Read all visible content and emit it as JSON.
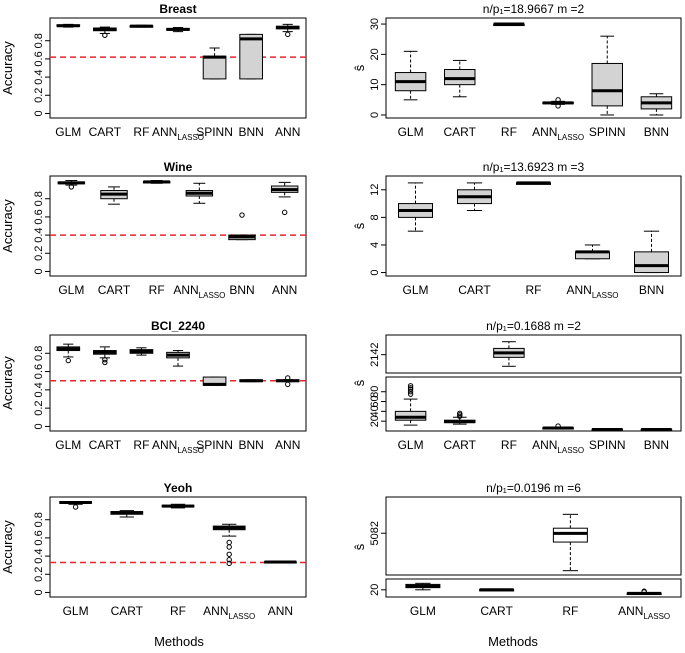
{
  "figure": {
    "xlabel_left": "Methods",
    "xlabel_right": "Methods"
  },
  "chart_data": [
    {
      "id": "breast-accuracy",
      "type": "box",
      "title": "Breast",
      "ylabel": "Accuracy",
      "ylim": [
        -0.05,
        1.05
      ],
      "yticks": [
        0.0,
        0.2,
        0.4,
        0.6,
        0.8
      ],
      "reference_line": 0.62,
      "categories": [
        {
          "label": "GLM",
          "sub": "",
          "min": 0.95,
          "q1": 0.96,
          "median": 0.965,
          "q3": 0.975,
          "max": 0.98,
          "outliers": [],
          "filled": true
        },
        {
          "label": "CART",
          "sub": "",
          "min": 0.88,
          "q1": 0.91,
          "median": 0.925,
          "q3": 0.94,
          "max": 0.95,
          "outliers": [
            0.86
          ],
          "filled": true
        },
        {
          "label": "RF",
          "sub": "",
          "min": 0.95,
          "q1": 0.955,
          "median": 0.96,
          "q3": 0.965,
          "max": 0.97,
          "outliers": [],
          "filled": true
        },
        {
          "label": "ANN",
          "sub": "LASSO",
          "min": 0.9,
          "q1": 0.915,
          "median": 0.925,
          "q3": 0.935,
          "max": 0.945,
          "outliers": [],
          "filled": true
        },
        {
          "label": "SPINN",
          "sub": "",
          "min": 0.38,
          "q1": 0.38,
          "median": 0.62,
          "q3": 0.63,
          "max": 0.72,
          "outliers": [],
          "filled": true
        },
        {
          "label": "BNN",
          "sub": "",
          "min": 0.38,
          "q1": 0.38,
          "median": 0.82,
          "q3": 0.87,
          "max": 0.87,
          "outliers": [],
          "filled": true
        },
        {
          "label": "ANN",
          "sub": "",
          "min": 0.9,
          "q1": 0.93,
          "median": 0.945,
          "q3": 0.96,
          "max": 0.98,
          "outliers": [
            0.87
          ],
          "filled": true
        }
      ]
    },
    {
      "id": "breast-shat",
      "type": "box",
      "title": "n/p₁=18.9667   m =2",
      "ylabel": "ŝ",
      "ylim": [
        -1,
        32
      ],
      "yticks": [
        0,
        10,
        20,
        30
      ],
      "categories": [
        {
          "label": "GLM",
          "sub": "",
          "min": 5,
          "q1": 8,
          "median": 11,
          "q3": 14,
          "max": 21,
          "outliers": [],
          "filled": true
        },
        {
          "label": "CART",
          "sub": "",
          "min": 6,
          "q1": 10,
          "median": 12,
          "q3": 15,
          "max": 18,
          "outliers": [],
          "filled": true
        },
        {
          "label": "RF",
          "sub": "",
          "min": 30,
          "q1": 30,
          "median": 30,
          "q3": 30,
          "max": 30,
          "outliers": [],
          "filled": true
        },
        {
          "label": "ANN",
          "sub": "LASSO",
          "min": 3.5,
          "q1": 3.8,
          "median": 4,
          "q3": 4.2,
          "max": 4.5,
          "outliers": [
            3,
            5
          ],
          "filled": true
        },
        {
          "label": "SPINN",
          "sub": "",
          "min": 0,
          "q1": 3,
          "median": 8,
          "q3": 17,
          "max": 26,
          "outliers": [],
          "filled": true
        },
        {
          "label": "BNN",
          "sub": "",
          "min": 0,
          "q1": 2,
          "median": 4,
          "q3": 6,
          "max": 7,
          "outliers": [],
          "filled": true
        }
      ]
    },
    {
      "id": "wine-accuracy",
      "type": "box",
      "title": "Wine",
      "ylabel": "Accuracy",
      "ylim": [
        -0.05,
        1.05
      ],
      "yticks": [
        0.0,
        0.2,
        0.4,
        0.6,
        0.8
      ],
      "reference_line": 0.4,
      "categories": [
        {
          "label": "GLM",
          "sub": "",
          "min": 0.95,
          "q1": 0.965,
          "median": 0.975,
          "q3": 0.985,
          "max": 1.0,
          "outliers": [
            0.93
          ],
          "filled": true
        },
        {
          "label": "CART",
          "sub": "",
          "min": 0.74,
          "q1": 0.8,
          "median": 0.85,
          "q3": 0.89,
          "max": 0.93,
          "outliers": [],
          "filled": true
        },
        {
          "label": "RF",
          "sub": "",
          "min": 0.97,
          "q1": 0.98,
          "median": 0.985,
          "q3": 0.99,
          "max": 1.0,
          "outliers": [],
          "filled": true
        },
        {
          "label": "ANN",
          "sub": "LASSO",
          "min": 0.75,
          "q1": 0.83,
          "median": 0.86,
          "q3": 0.89,
          "max": 0.97,
          "outliers": [],
          "filled": true
        },
        {
          "label": "BNN",
          "sub": "",
          "min": 0.35,
          "q1": 0.35,
          "median": 0.38,
          "q3": 0.4,
          "max": 0.4,
          "outliers": [
            0.62
          ],
          "filled": true
        },
        {
          "label": "ANN",
          "sub": "",
          "min": 0.82,
          "q1": 0.87,
          "median": 0.9,
          "q3": 0.94,
          "max": 0.98,
          "outliers": [
            0.65
          ],
          "filled": true
        }
      ]
    },
    {
      "id": "wine-shat",
      "type": "box",
      "title": "n/p₁=13.6923   m =3",
      "ylabel": "ŝ",
      "ylim": [
        -0.5,
        14
      ],
      "yticks": [
        0,
        4,
        8,
        12
      ],
      "categories": [
        {
          "label": "GLM",
          "sub": "",
          "min": 6,
          "q1": 8,
          "median": 9,
          "q3": 10,
          "max": 13,
          "outliers": [],
          "filled": true
        },
        {
          "label": "CART",
          "sub": "",
          "min": 9,
          "q1": 10,
          "median": 11,
          "q3": 12,
          "max": 13,
          "outliers": [],
          "filled": true
        },
        {
          "label": "RF",
          "sub": "",
          "min": 13,
          "q1": 13,
          "median": 13,
          "q3": 13,
          "max": 13,
          "outliers": [],
          "filled": true
        },
        {
          "label": "ANN",
          "sub": "LASSO",
          "min": 2,
          "q1": 2,
          "median": 3,
          "q3": 3,
          "max": 4,
          "outliers": [],
          "filled": true
        },
        {
          "label": "BNN",
          "sub": "",
          "min": 0,
          "q1": 0,
          "median": 1,
          "q3": 3,
          "max": 6,
          "outliers": [],
          "filled": true
        }
      ]
    },
    {
      "id": "bci-accuracy",
      "type": "box",
      "title": "BCI_2240",
      "ylabel": "Accuracy",
      "ylim": [
        -0.05,
        1.0
      ],
      "yticks": [
        0.0,
        0.2,
        0.4,
        0.6,
        0.8
      ],
      "reference_line": 0.5,
      "categories": [
        {
          "label": "GLM",
          "sub": "",
          "min": 0.76,
          "q1": 0.83,
          "median": 0.85,
          "q3": 0.87,
          "max": 0.9,
          "outliers": [
            0.72
          ],
          "filled": true
        },
        {
          "label": "CART",
          "sub": "",
          "min": 0.75,
          "q1": 0.79,
          "median": 0.81,
          "q3": 0.83,
          "max": 0.87,
          "outliers": [
            0.7,
            0.73
          ],
          "filled": true
        },
        {
          "label": "RF",
          "sub": "",
          "min": 0.78,
          "q1": 0.8,
          "median": 0.82,
          "q3": 0.84,
          "max": 0.86,
          "outliers": [],
          "filled": true
        },
        {
          "label": "ANN",
          "sub": "LASSO",
          "min": 0.66,
          "q1": 0.75,
          "median": 0.78,
          "q3": 0.81,
          "max": 0.83,
          "outliers": [],
          "filled": true
        },
        {
          "label": "SPINN",
          "sub": "",
          "min": 0.45,
          "q1": 0.45,
          "median": 0.46,
          "q3": 0.54,
          "max": 0.54,
          "outliers": [],
          "filled": true
        },
        {
          "label": "BNN",
          "sub": "",
          "min": 0.49,
          "q1": 0.49,
          "median": 0.5,
          "q3": 0.51,
          "max": 0.51,
          "outliers": [],
          "filled": true
        },
        {
          "label": "ANN",
          "sub": "",
          "min": 0.49,
          "q1": 0.49,
          "median": 0.5,
          "q3": 0.51,
          "max": 0.51,
          "outliers": [
            0.46,
            0.53
          ],
          "filled": true
        }
      ]
    },
    {
      "id": "bci-shat",
      "type": "box",
      "title": "n/p₁=0.1688   m =2",
      "ylabel": "ŝ",
      "broken_axis": true,
      "upper": {
        "ylim": [
          2060,
          2230
        ],
        "yticks": [
          2142
        ]
      },
      "lower": {
        "ylim": [
          0,
          110
        ],
        "yticks": [
          20,
          40,
          60,
          80
        ]
      },
      "categories": [
        {
          "label": "GLM",
          "sub": "",
          "min": 12,
          "q1": 22,
          "median": 28,
          "q3": 40,
          "max": 65,
          "outliers": [
            75,
            80,
            85,
            88,
            92
          ],
          "filled": true,
          "segment": "lower"
        },
        {
          "label": "CART",
          "sub": "",
          "min": 14,
          "q1": 17,
          "median": 19,
          "q3": 22,
          "max": 28,
          "outliers": [
            30,
            33,
            36
          ],
          "filled": true,
          "segment": "lower"
        },
        {
          "label": "RF",
          "sub": "",
          "min": 2090,
          "q1": 2130,
          "median": 2150,
          "q3": 2170,
          "max": 2200,
          "outliers": [],
          "filled": true,
          "segment": "upper"
        },
        {
          "label": "ANN",
          "sub": "LASSO",
          "min": 4,
          "q1": 5,
          "median": 6,
          "q3": 7,
          "max": 8,
          "outliers": [
            10
          ],
          "filled": true,
          "segment": "lower"
        },
        {
          "label": "SPINN",
          "sub": "",
          "min": 2,
          "q1": 2.5,
          "median": 3,
          "q3": 3.5,
          "max": 4,
          "outliers": [],
          "filled": true,
          "segment": "lower"
        },
        {
          "label": "BNN",
          "sub": "",
          "min": 2,
          "q1": 2.5,
          "median": 3,
          "q3": 3.5,
          "max": 4,
          "outliers": [],
          "filled": true,
          "segment": "lower"
        }
      ]
    },
    {
      "id": "yeoh-accuracy",
      "type": "box",
      "title": "Yeoh",
      "ylabel": "Accuracy",
      "ylim": [
        -0.05,
        1.05
      ],
      "yticks": [
        0.0,
        0.2,
        0.4,
        0.6,
        0.8
      ],
      "reference_line": 0.33,
      "categories": [
        {
          "label": "GLM",
          "sub": "",
          "min": 0.97,
          "q1": 0.98,
          "median": 0.99,
          "q3": 1.0,
          "max": 1.0,
          "outliers": [
            0.94
          ],
          "filled": true
        },
        {
          "label": "CART",
          "sub": "",
          "min": 0.83,
          "q1": 0.86,
          "median": 0.875,
          "q3": 0.89,
          "max": 0.9,
          "outliers": [],
          "filled": true
        },
        {
          "label": "RF",
          "sub": "",
          "min": 0.93,
          "q1": 0.94,
          "median": 0.95,
          "q3": 0.96,
          "max": 0.97,
          "outliers": [],
          "filled": true
        },
        {
          "label": "ANN",
          "sub": "LASSO",
          "min": 0.62,
          "q1": 0.69,
          "median": 0.71,
          "q3": 0.73,
          "max": 0.75,
          "outliers": [
            0.55,
            0.5,
            0.42,
            0.36,
            0.32
          ],
          "filled": true
        },
        {
          "label": "ANN",
          "sub": "",
          "min": 0.33,
          "q1": 0.33,
          "median": 0.335,
          "q3": 0.34,
          "max": 0.34,
          "outliers": [],
          "filled": true
        }
      ]
    },
    {
      "id": "yeoh-shat",
      "type": "box",
      "title": "n/p₁=0.0196   m =6",
      "ylabel": "ŝ",
      "broken_axis": true,
      "upper": {
        "ylim": [
          4600,
          5500
        ],
        "yticks": [
          5082
        ]
      },
      "lower": {
        "ylim": [
          0,
          50
        ],
        "yticks": [
          20
        ]
      },
      "categories": [
        {
          "label": "GLM",
          "sub": "",
          "min": 20,
          "q1": 26,
          "median": 30,
          "q3": 35,
          "max": 38,
          "outliers": [],
          "filled": true,
          "segment": "lower"
        },
        {
          "label": "CART",
          "sub": "",
          "min": 18,
          "q1": 19,
          "median": 20,
          "q3": 21,
          "max": 22,
          "outliers": [],
          "filled": true,
          "segment": "lower"
        },
        {
          "label": "RF",
          "sub": "",
          "min": 4650,
          "q1": 4980,
          "median": 5080,
          "q3": 5140,
          "max": 5300,
          "outliers": [],
          "filled": false,
          "segment": "upper"
        },
        {
          "label": "ANN",
          "sub": "LASSO",
          "min": 8,
          "q1": 9,
          "median": 10,
          "q3": 11,
          "max": 12,
          "outliers": [
            14,
            16
          ],
          "filled": true,
          "segment": "lower"
        }
      ]
    }
  ]
}
